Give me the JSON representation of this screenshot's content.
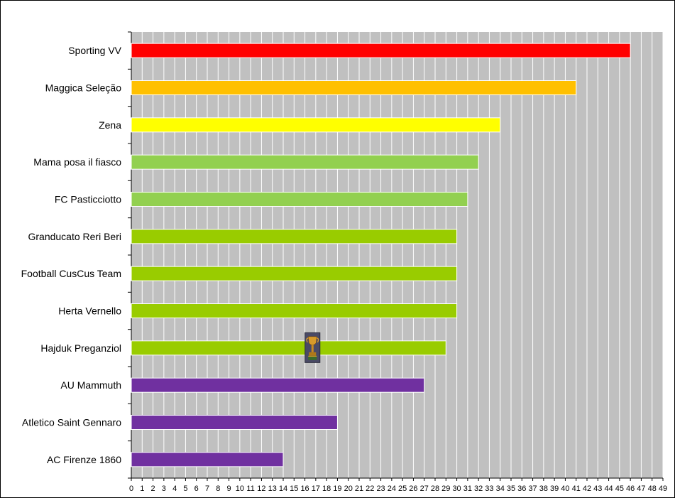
{
  "chart_data": {
    "type": "bar",
    "orientation": "horizontal",
    "title": "",
    "xlabel": "",
    "ylabel": "",
    "xlim": [
      0,
      49
    ],
    "x_ticks": [
      0,
      1,
      2,
      3,
      4,
      5,
      6,
      7,
      8,
      9,
      10,
      11,
      12,
      13,
      14,
      15,
      16,
      17,
      18,
      19,
      20,
      21,
      22,
      23,
      24,
      25,
      26,
      27,
      28,
      29,
      30,
      31,
      32,
      33,
      34,
      35,
      36,
      37,
      38,
      39,
      40,
      41,
      42,
      43,
      44,
      45,
      46,
      47,
      48,
      49
    ],
    "grid": true,
    "plot_background": "#c0c0c0",
    "gridline_color": "#ffffff",
    "categories": [
      "Sporting VV",
      "Maggica Seleção",
      "Zena",
      "Mama posa il fiasco",
      "FC Pasticciotto",
      "Granducato Reri Beri",
      "Football CusCus Team",
      "Herta Vernello",
      "Hajduk Preganziol",
      "AU Mammuth",
      "Atletico Saint Gennaro",
      "AC Firenze 1860"
    ],
    "values": [
      46,
      41,
      34,
      32,
      31,
      30,
      30,
      30,
      29,
      27,
      19,
      14
    ],
    "colors": [
      "#ff0000",
      "#ffc000",
      "#ffff00",
      "#92d050",
      "#92d050",
      "#99cc00",
      "#99cc00",
      "#99cc00",
      "#99cc00",
      "#7030a0",
      "#7030a0",
      "#7030a0"
    ],
    "annotations": [
      {
        "type": "trophy-icon",
        "category": "Hajduk Preganziol",
        "x_value": 16.7
      }
    ]
  }
}
